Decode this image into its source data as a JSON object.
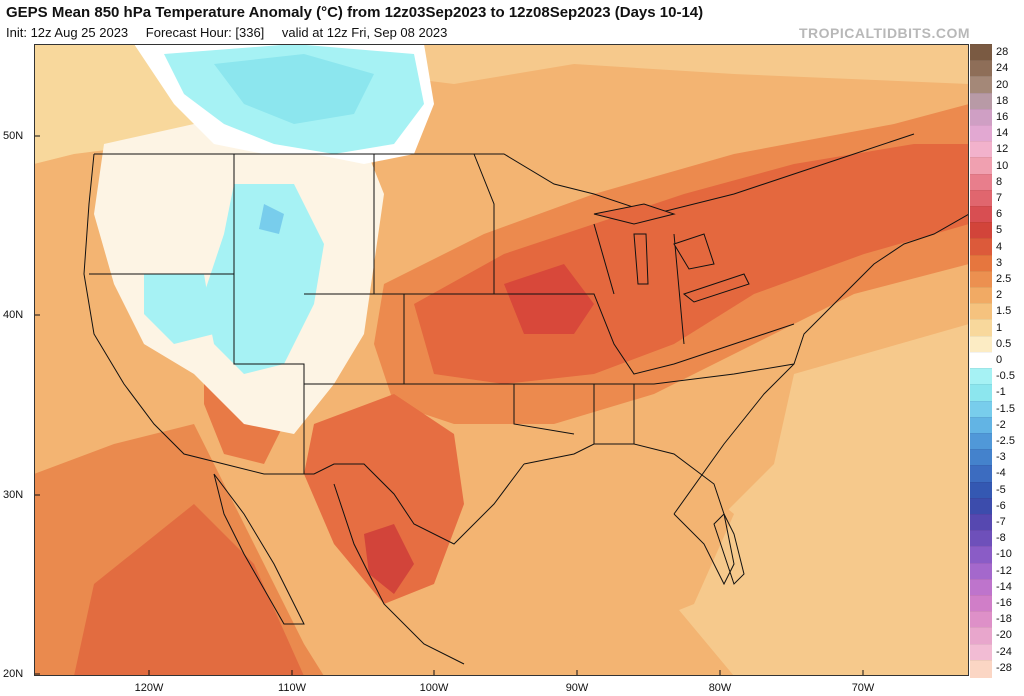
{
  "header": {
    "title": "GEPS Mean 850 hPa Temperature Anomaly (°C) from 12z03Sep2023 to 12z08Sep2023 (Days 10-14)",
    "init": "Init: 12z Aug 25 2023",
    "forecast_hour": "Forecast Hour: [336]",
    "valid": "valid at 12z Fri, Sep 08 2023",
    "brand": "TROPICALTIDBITS.COM"
  },
  "map": {
    "lat_labels": [
      "50N",
      "40N",
      "30N",
      "20N"
    ],
    "lon_labels": [
      "120W",
      "110W",
      "100W",
      "90W",
      "80W",
      "70W"
    ]
  },
  "legend": {
    "items": [
      {
        "label": "28",
        "color": "#7a5a42"
      },
      {
        "label": "24",
        "color": "#8e6e58"
      },
      {
        "label": "20",
        "color": "#a48878"
      },
      {
        "label": "18",
        "color": "#b89aa6"
      },
      {
        "label": "16",
        "color": "#cf9fc4"
      },
      {
        "label": "14",
        "color": "#e2a8d2"
      },
      {
        "label": "12",
        "color": "#f2b2cc"
      },
      {
        "label": "10",
        "color": "#f0a0b0"
      },
      {
        "label": "8",
        "color": "#e87e8c"
      },
      {
        "label": "7",
        "color": "#e0666e"
      },
      {
        "label": "6",
        "color": "#d84e52"
      },
      {
        "label": "5",
        "color": "#d2443a"
      },
      {
        "label": "4",
        "color": "#dc5a3a"
      },
      {
        "label": "3",
        "color": "#e6763e"
      },
      {
        "label": "2.5",
        "color": "#ec9050"
      },
      {
        "label": "2",
        "color": "#f1aa64"
      },
      {
        "label": "1.5",
        "color": "#f5c27e"
      },
      {
        "label": "1",
        "color": "#f8d89c"
      },
      {
        "label": "0.5",
        "color": "#fcecc4"
      },
      {
        "label": "0",
        "color": "#ffffff"
      },
      {
        "label": "-0.5",
        "color": "#a6f2f4"
      },
      {
        "label": "-1",
        "color": "#8ce6ee"
      },
      {
        "label": "-1.5",
        "color": "#78cdec"
      },
      {
        "label": "-2",
        "color": "#62b4e4"
      },
      {
        "label": "-2.5",
        "color": "#5098d8"
      },
      {
        "label": "-3",
        "color": "#4482cc"
      },
      {
        "label": "-4",
        "color": "#3c6cc0"
      },
      {
        "label": "-5",
        "color": "#3458b2"
      },
      {
        "label": "-6",
        "color": "#3c4cac"
      },
      {
        "label": "-7",
        "color": "#5648b0"
      },
      {
        "label": "-8",
        "color": "#6e50ba"
      },
      {
        "label": "-10",
        "color": "#8a5cc6"
      },
      {
        "label": "-12",
        "color": "#a468cc"
      },
      {
        "label": "-14",
        "color": "#be74cc"
      },
      {
        "label": "-16",
        "color": "#d07ec8"
      },
      {
        "label": "-18",
        "color": "#de90c8"
      },
      {
        "label": "-20",
        "color": "#e8a6cc"
      },
      {
        "label": "-24",
        "color": "#f2bcd4"
      },
      {
        "label": "-28",
        "color": "#fbd6c4"
      }
    ]
  }
}
